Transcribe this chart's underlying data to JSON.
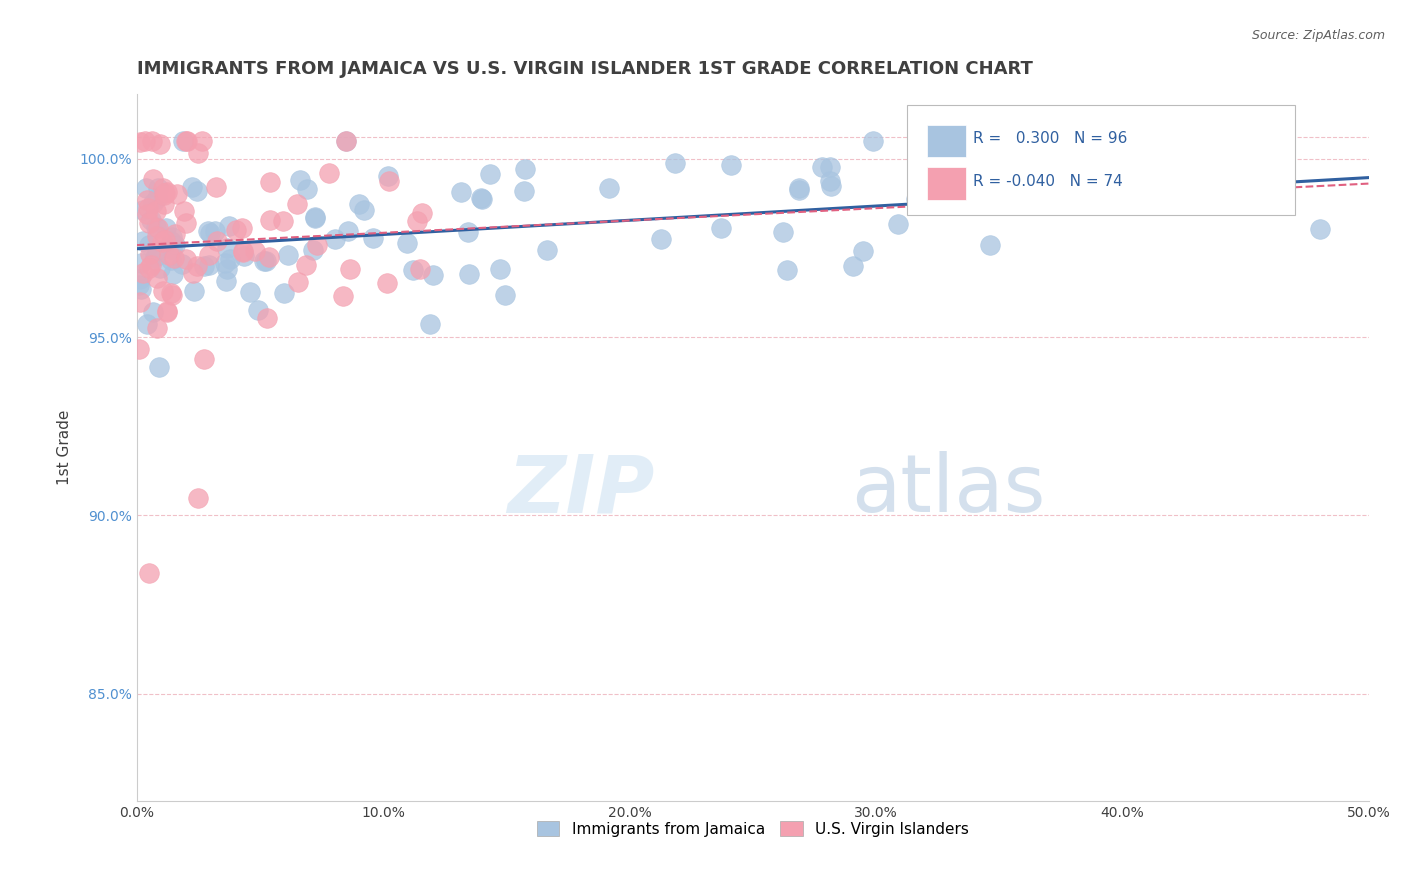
{
  "title": "IMMIGRANTS FROM JAMAICA VS U.S. VIRGIN ISLANDER 1ST GRADE CORRELATION CHART",
  "source": "Source: ZipAtlas.com",
  "ylabel": "1st Grade",
  "xlim": [
    0.0,
    0.5
  ],
  "ylim": [
    0.82,
    1.018
  ],
  "yticks": [
    0.85,
    0.9,
    0.95,
    1.0
  ],
  "ytick_labels": [
    "85.0%",
    "90.0%",
    "95.0%",
    "100.0%"
  ],
  "xticks": [
    0.0,
    0.1,
    0.2,
    0.3,
    0.4,
    0.5
  ],
  "xtick_labels": [
    "0.0%",
    "10.0%",
    "20.0%",
    "30.0%",
    "40.0%",
    "50.0%"
  ],
  "blue_R": 0.3,
  "blue_N": 96,
  "pink_R": -0.04,
  "pink_N": 74,
  "blue_color": "#a8c4e0",
  "pink_color": "#f4a0b0",
  "blue_line_color": "#3060a0",
  "pink_line_color": "#e06080",
  "legend_label_blue": "Immigrants from Jamaica",
  "legend_label_pink": "U.S. Virgin Islanders",
  "watermark_zip": "ZIP",
  "watermark_atlas": "atlas",
  "background_color": "#ffffff",
  "grid_color": "#f0c0c8",
  "title_color": "#404040",
  "title_fontsize": 13
}
